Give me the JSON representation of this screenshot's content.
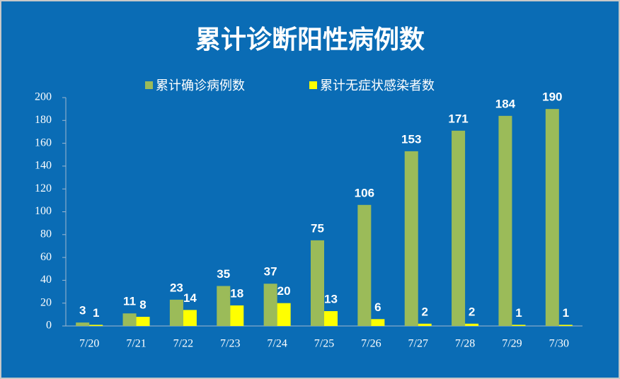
{
  "chart_data": {
    "type": "bar",
    "title": "累计诊断阳性病例数",
    "categories": [
      "7/20",
      "7/21",
      "7/22",
      "7/23",
      "7/24",
      "7/25",
      "7/26",
      "7/27",
      "7/28",
      "7/29",
      "7/30"
    ],
    "series": [
      {
        "name": "累计确诊病例数",
        "color": "#9bbb59",
        "values": [
          3,
          11,
          23,
          35,
          37,
          75,
          106,
          153,
          171,
          184,
          190
        ]
      },
      {
        "name": "累计无症状感染者数",
        "color": "#ffff00",
        "values": [
          1,
          8,
          14,
          18,
          20,
          13,
          6,
          2,
          2,
          1,
          1
        ]
      }
    ],
    "ylim": [
      0,
      200
    ],
    "yticks": [
      0,
      20,
      40,
      60,
      80,
      100,
      120,
      140,
      160,
      180,
      200
    ],
    "grid": false
  }
}
